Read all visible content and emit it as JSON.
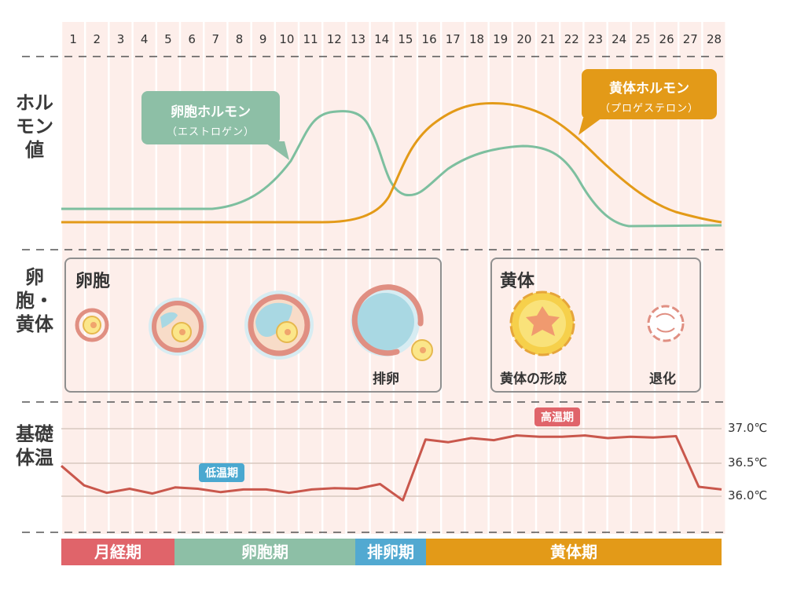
{
  "days": [
    "1",
    "2",
    "3",
    "4",
    "5",
    "6",
    "7",
    "8",
    "9",
    "10",
    "11",
    "12",
    "13",
    "14",
    "15",
    "16",
    "17",
    "18",
    "19",
    "20",
    "21",
    "22",
    "23",
    "24",
    "25",
    "26",
    "27",
    "28"
  ],
  "row_labels": {
    "hormone": "ホルモン値",
    "follicle_luteum": "卵胞・黄体",
    "bbt": "基礎体温"
  },
  "hormone_callouts": {
    "estrogen_title": "卵胞ホルモン",
    "estrogen_sub": "（エストロゲン）",
    "progesterone_title": "黄体ホルモン",
    "progesterone_sub": "（プロゲステロン）"
  },
  "follicle_box": {
    "title": "卵胞",
    "ovulation_caption": "排卵"
  },
  "luteum_box": {
    "title": "黄体",
    "formation_caption": "黄体の形成",
    "regression_caption": "退化"
  },
  "temperature": {
    "low_label": "低温期",
    "high_label": "高温期",
    "ticks": [
      "37.0℃",
      "36.5℃",
      "36.0℃"
    ],
    "values": [
      36.45,
      36.16,
      36.05,
      36.11,
      36.04,
      36.13,
      36.11,
      36.06,
      36.1,
      36.1,
      36.05,
      36.1,
      36.12,
      36.11,
      36.18,
      35.94,
      36.84,
      36.8,
      36.86,
      36.83,
      36.9,
      36.88,
      36.88,
      36.9,
      36.86,
      36.88,
      36.87,
      36.89,
      36.14,
      36.1
    ]
  },
  "phases": [
    {
      "label": "月経期",
      "color": "#e0646a"
    },
    {
      "label": "卵胞期",
      "color": "#8dbfa6"
    },
    {
      "label": "排卵期",
      "color": "#52a9d1"
    },
    {
      "label": "黄体期",
      "color": "#e39a18"
    }
  ],
  "colors": {
    "estrogen": "#7dbf9f",
    "progesterone": "#e39a18",
    "temperature": "#c9574c",
    "low_badge": "#4aa8d0",
    "high_badge": "#e0646a",
    "stripe": "#fdeeea"
  }
}
